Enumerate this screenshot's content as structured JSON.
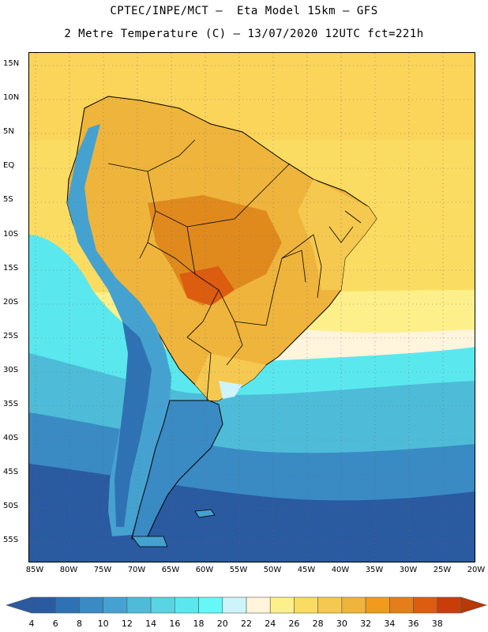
{
  "title": {
    "line1": "CPTEC/INPE/MCT –  Eta Model 15km – GFS",
    "line2": "2 Metre Temperature (C) – 13/07/2020 12UTC fct=221h"
  },
  "map": {
    "region": "South America",
    "lat_labels": [
      "15N",
      "10N",
      "5N",
      "EQ",
      "5S",
      "10S",
      "15S",
      "20S",
      "25S",
      "30S",
      "35S",
      "40S",
      "45S",
      "50S",
      "55S"
    ],
    "lon_labels": [
      "85W",
      "80W",
      "75W",
      "70W",
      "65W",
      "60W",
      "55W",
      "50W",
      "45W",
      "40W",
      "35W",
      "30W",
      "25W",
      "20W"
    ]
  },
  "colorbar": {
    "labels": [
      "4",
      "6",
      "8",
      "10",
      "12",
      "14",
      "16",
      "18",
      "20",
      "22",
      "24",
      "26",
      "28",
      "30",
      "32",
      "34",
      "36",
      "38"
    ],
    "colors": [
      "#2a5aa0",
      "#2f72b4",
      "#3a8ac4",
      "#45a2d0",
      "#4ebcd8",
      "#58d4e2",
      "#5ae8ee",
      "#66f8f8",
      "#cdf4fa",
      "#fff4dc",
      "#fdf08a",
      "#fbdc62",
      "#f5c850",
      "#efb43c",
      "#f19a1e",
      "#e57e1a",
      "#dc5c10",
      "#c83e08"
    ],
    "under_color": "#2a5aa0",
    "over_color": "#b83808"
  }
}
